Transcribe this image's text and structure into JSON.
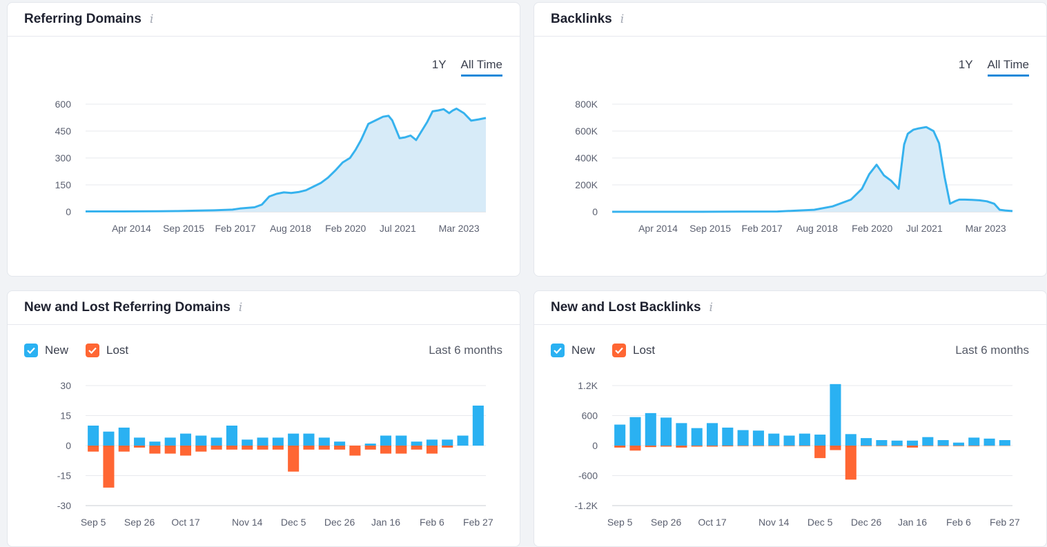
{
  "colors": {
    "new": "#2ab1f2",
    "lost": "#ff6633",
    "line": "#36b2ee",
    "area": "#d7ebf8",
    "accent": "#1a88d9"
  },
  "cards": [
    {
      "title": "Referring Domains",
      "info_icon": "info-icon",
      "tabs": [
        {
          "label": "1Y",
          "active": false
        },
        {
          "label": "All Time",
          "active": true
        }
      ]
    },
    {
      "title": "Backlinks",
      "info_icon": "info-icon",
      "tabs": [
        {
          "label": "1Y",
          "active": false
        },
        {
          "label": "All Time",
          "active": true
        }
      ]
    },
    {
      "title": "New and Lost Referring Domains",
      "info_icon": "info-icon",
      "legend": [
        {
          "label": "New",
          "checked": true
        },
        {
          "label": "Lost",
          "checked": true
        }
      ],
      "period": "Last 6 months"
    },
    {
      "title": "New and Lost Backlinks",
      "info_icon": "info-icon",
      "legend": [
        {
          "label": "New",
          "checked": true
        },
        {
          "label": "Lost",
          "checked": true
        }
      ],
      "period": "Last 6 months"
    }
  ],
  "chart_data": [
    {
      "type": "area",
      "x_range": [
        2013.0,
        2023.9
      ],
      "ylim": [
        0,
        600
      ],
      "y_ticks": [
        0,
        150,
        300,
        450,
        600
      ],
      "y_tick_labels": [
        "0",
        "150",
        "300",
        "450",
        "600"
      ],
      "x_ticks": [
        2014.25,
        2015.67,
        2017.08,
        2018.58,
        2020.08,
        2021.5,
        2023.17
      ],
      "x_tick_labels": [
        "Apr 2014",
        "Sep 2015",
        "Feb 2017",
        "Aug 2018",
        "Feb 2020",
        "Jul 2021",
        "Mar 2023"
      ],
      "grid": true,
      "series": [
        {
          "x": [
            2013.0,
            2014.0,
            2015.0,
            2015.5,
            2016.0,
            2016.5,
            2017.0,
            2017.2,
            2017.6,
            2017.8,
            2018.0,
            2018.2,
            2018.4,
            2018.6,
            2018.8,
            2019.0,
            2019.2,
            2019.4,
            2019.6,
            2019.8,
            2020.0,
            2020.2,
            2020.35,
            2020.5,
            2020.7,
            2020.9,
            2021.1,
            2021.25,
            2021.35,
            2021.55,
            2021.7,
            2021.85,
            2022.0,
            2022.15,
            2022.3,
            2022.45,
            2022.6,
            2022.75,
            2022.9,
            2023.0,
            2023.1,
            2023.3,
            2023.5,
            2023.7,
            2023.9
          ],
          "y": [
            2,
            2,
            3,
            4,
            6,
            8,
            12,
            18,
            25,
            40,
            85,
            100,
            108,
            105,
            110,
            120,
            140,
            160,
            190,
            230,
            275,
            300,
            345,
            400,
            490,
            510,
            530,
            535,
            510,
            410,
            415,
            425,
            400,
            450,
            500,
            560,
            565,
            572,
            550,
            565,
            575,
            550,
            508,
            515,
            523
          ]
        }
      ]
    },
    {
      "type": "area",
      "x_range": [
        2013.0,
        2023.9
      ],
      "ylim": [
        0,
        800000
      ],
      "y_ticks": [
        0,
        200000,
        400000,
        600000,
        800000
      ],
      "y_tick_labels": [
        "0",
        "200K",
        "400K",
        "600K",
        "800K"
      ],
      "x_ticks": [
        2014.25,
        2015.67,
        2017.08,
        2018.58,
        2020.08,
        2021.5,
        2023.17
      ],
      "x_tick_labels": [
        "Apr 2014",
        "Sep 2015",
        "Feb 2017",
        "Aug 2018",
        "Feb 2020",
        "Jul 2021",
        "Mar 2023"
      ],
      "grid": true,
      "series": [
        {
          "x": [
            2013.0,
            2015.0,
            2016.5,
            2017.5,
            2018.0,
            2018.5,
            2019.0,
            2019.5,
            2019.8,
            2020.0,
            2020.2,
            2020.4,
            2020.6,
            2020.8,
            2020.95,
            2021.05,
            2021.2,
            2021.35,
            2021.55,
            2021.75,
            2021.9,
            2022.05,
            2022.2,
            2022.35,
            2022.45,
            2022.6,
            2022.8,
            2023.0,
            2023.2,
            2023.4,
            2023.55,
            2023.7,
            2023.9
          ],
          "y": [
            0,
            0,
            1000,
            2000,
            8000,
            15000,
            40000,
            90000,
            170000,
            280000,
            350000,
            270000,
            230000,
            170000,
            500000,
            580000,
            610000,
            620000,
            630000,
            600000,
            510000,
            260000,
            60000,
            80000,
            90000,
            90000,
            88000,
            85000,
            78000,
            60000,
            15000,
            10000,
            5000
          ]
        }
      ]
    },
    {
      "type": "bar",
      "ylim": [
        -30,
        30
      ],
      "y_ticks": [
        -30,
        -15,
        0,
        15,
        30
      ],
      "y_tick_labels": [
        "-30",
        "-15",
        "0",
        "15",
        "30"
      ],
      "x_tick_labels": [
        "Sep 5",
        "Sep 26",
        "Oct 17",
        "Nov 14",
        "Dec 5",
        "Dec 26",
        "Jan 16",
        "Feb 6",
        "Feb 27"
      ],
      "x_tick_positions": [
        0.5,
        3.5,
        6.5,
        10.5,
        13.5,
        16.5,
        19.5,
        22.5,
        25.5
      ],
      "grid": true,
      "series": [
        {
          "name": "New",
          "values": [
            10,
            7,
            9,
            4,
            2,
            4,
            6,
            5,
            4,
            10,
            3,
            4,
            4,
            6,
            6,
            4,
            2,
            0,
            1,
            5,
            5,
            2,
            3,
            3,
            5,
            20
          ]
        },
        {
          "name": "Lost",
          "values": [
            -3,
            -21,
            -3,
            -1,
            -4,
            -4,
            -5,
            -3,
            -2,
            -2,
            -2,
            -2,
            -2,
            -13,
            -2,
            -2,
            -2,
            -5,
            -2,
            -4,
            -4,
            -2,
            -4,
            -1,
            0,
            0
          ]
        }
      ]
    },
    {
      "type": "bar",
      "ylim": [
        -1200,
        1200
      ],
      "y_ticks": [
        -1200,
        -600,
        0,
        600,
        1200
      ],
      "y_tick_labels": [
        "-1.2K",
        "-600",
        "0",
        "600",
        "1.2K"
      ],
      "x_tick_labels": [
        "Sep 5",
        "Sep 26",
        "Oct 17",
        "Nov 14",
        "Dec 5",
        "Dec 26",
        "Jan 16",
        "Feb 6",
        "Feb 27"
      ],
      "x_tick_positions": [
        0.5,
        3.5,
        6.5,
        10.5,
        13.5,
        16.5,
        19.5,
        22.5,
        25.5
      ],
      "grid": true,
      "series": [
        {
          "name": "New",
          "values": [
            420,
            570,
            650,
            560,
            450,
            350,
            450,
            360,
            310,
            300,
            240,
            200,
            240,
            220,
            1230,
            230,
            150,
            110,
            100,
            100,
            170,
            110,
            60,
            160,
            140,
            110
          ]
        },
        {
          "name": "Lost",
          "values": [
            -40,
            -100,
            -30,
            -20,
            -40,
            -20,
            -20,
            -15,
            -10,
            -10,
            -10,
            -10,
            -10,
            -250,
            -90,
            -680,
            -10,
            -10,
            -10,
            -40,
            -10,
            -10,
            -10,
            -10,
            -5,
            -5
          ]
        }
      ]
    }
  ]
}
